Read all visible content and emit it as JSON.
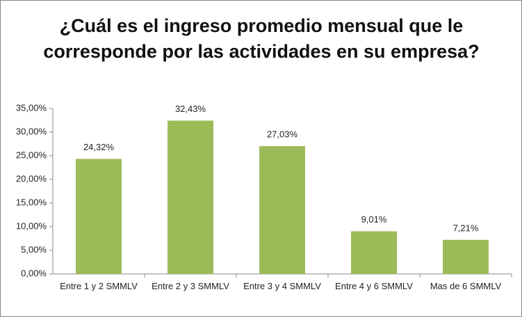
{
  "chart_data": {
    "type": "bar",
    "title": "¿Cuál es el ingreso promedio mensual que le corresponde por las actividades en su empresa?",
    "categories": [
      "Entre 1 y 2 SMMLV",
      "Entre 2 y 3 SMMLV",
      "Entre 3 y 4 SMMLV",
      "Entre 4 y 6 SMMLV",
      "Mas de 6 SMMLV"
    ],
    "values": [
      24.32,
      32.43,
      27.03,
      9.01,
      7.21
    ],
    "value_labels": [
      "24,32%",
      "32,43%",
      "27,03%",
      "9,01%",
      "7,21%"
    ],
    "color": "#9bbb59",
    "ylim": [
      0,
      35
    ],
    "yticks": [
      {
        "value": 0,
        "label": "0,00%"
      },
      {
        "value": 5,
        "label": "5,00%"
      },
      {
        "value": 10,
        "label": "10,00%"
      },
      {
        "value": 15,
        "label": "15,00%"
      },
      {
        "value": 20,
        "label": "20,00%"
      },
      {
        "value": 25,
        "label": "25,00%"
      },
      {
        "value": 30,
        "label": "30,00%"
      },
      {
        "value": 35,
        "label": "35,00%"
      }
    ],
    "grid": false
  }
}
